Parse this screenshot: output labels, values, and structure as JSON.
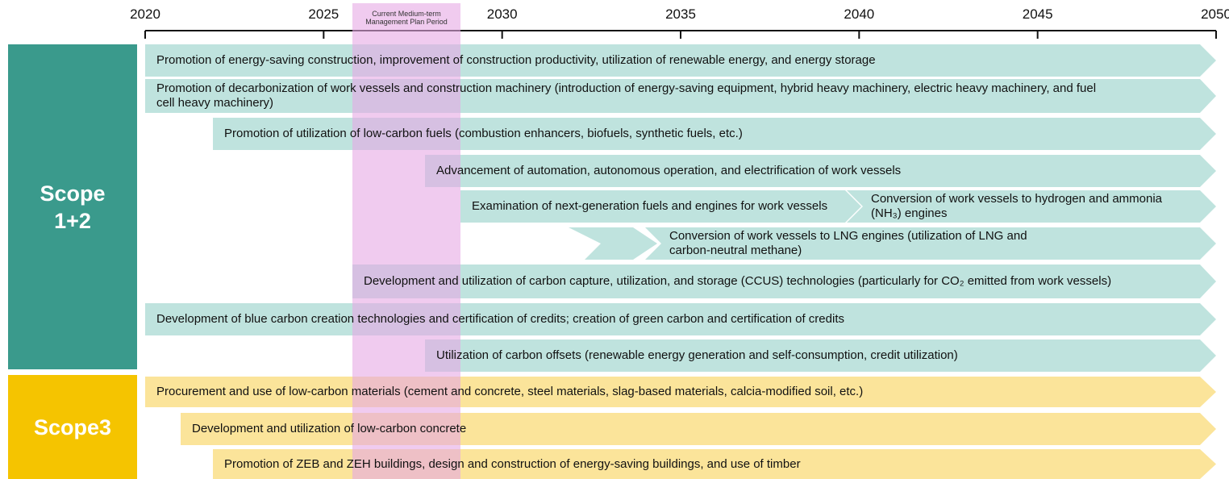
{
  "axis": {
    "ticks": [
      2020,
      2025,
      2030,
      2035,
      2040,
      2045,
      2050
    ]
  },
  "period_label": "Current Medium-term Management Plan Period",
  "scopes": [
    {
      "label": "Scope 1+2"
    },
    {
      "label": "Scope3"
    }
  ],
  "rows": [
    {
      "label": "Promotion of energy-saving construction, improvement of construction productivity, utilization of renewable energy, and energy storage"
    },
    {
      "label": "Promotion of decarbonization of work vessels and construction machinery (introduction of energy-saving equipment, hybrid heavy machinery, electric heavy machinery, and fuel cell heavy machinery)"
    },
    {
      "label": "Promotion of utilization of low-carbon fuels (combustion enhancers, biofuels, synthetic fuels, etc.)"
    },
    {
      "label": "Advancement of automation, autonomous operation, and electrification of work vessels"
    },
    {
      "label": "Examination of next-generation fuels and engines for work vessels"
    },
    {
      "label": "Conversion of work vessels to hydrogen and ammonia (NH₃) engines"
    },
    {
      "label": "Conversion of work vessels to LNG engines (utilization of LNG and carbon-neutral methane)"
    },
    {
      "label": "Development and utilization of carbon capture, utilization, and storage (CCUS) technologies (particularly for CO₂ emitted from work vessels)"
    },
    {
      "label": "Development of blue carbon creation technologies and certification of credits; creation of green carbon and certification of credits"
    },
    {
      "label": "Utilization of carbon offsets (renewable energy generation and self-consumption, credit utilization)"
    },
    {
      "label": "Procurement and use of low-carbon materials (cement and concrete, steel materials, slag-based materials, calcia-modified soil, etc.)"
    },
    {
      "label": "Development and utilization of low-carbon concrete"
    },
    {
      "label": "Promotion of ZEB and ZEH buildings, design and construction of energy-saving buildings, and use of timber"
    }
  ]
}
